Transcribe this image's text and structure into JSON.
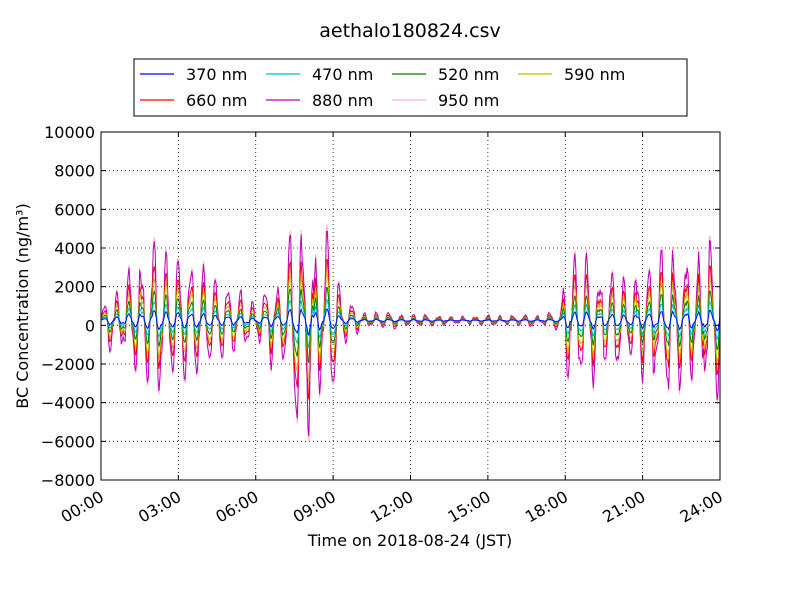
{
  "chart_data": {
    "type": "line",
    "title": "aethalo180824.csv",
    "xlabel": "Time on 2018-08-24 (JST)",
    "ylabel": "BC Concentration (ng/m³)",
    "xlim": [
      "00:00",
      "24:00"
    ],
    "ylim": [
      -8000,
      10000
    ],
    "x_ticks": [
      "00:00",
      "03:00",
      "06:00",
      "09:00",
      "12:00",
      "15:00",
      "18:00",
      "21:00",
      "24:00"
    ],
    "y_ticks": [
      "10000",
      "8000",
      "6000",
      "4000",
      "2000",
      "0",
      "−2000",
      "−4000",
      "−6000",
      "−8000"
    ],
    "grid": true,
    "legend_position": "top",
    "series": [
      {
        "name": "370 nm",
        "color": "#0000ff",
        "amp": 0.12
      },
      {
        "name": "470 nm",
        "color": "#00bfbf",
        "amp": 0.22
      },
      {
        "name": "520 nm",
        "color": "#008000",
        "amp": 0.35
      },
      {
        "name": "590 nm",
        "color": "#bfbf00",
        "amp": 0.5
      },
      {
        "name": "660 nm",
        "color": "#ff0000",
        "amp": 0.65
      },
      {
        "name": "880 nm",
        "color": "#bf00bf",
        "amp": 0.95
      },
      {
        "name": "950 nm",
        "color": "#ffb6c1",
        "amp": 1.0
      }
    ],
    "envelope": {
      "x_hours": [
        0,
        0.3,
        0.7,
        1.2,
        1.7,
        2.0,
        2.4,
        2.9,
        3.4,
        4.0,
        4.6,
        5.2,
        5.8,
        6.3,
        6.8,
        7.2,
        7.5,
        7.8,
        8.0,
        8.2,
        8.4,
        8.6,
        8.9,
        9.2,
        9.5,
        10.0,
        11.0,
        12.0,
        13.0,
        14.0,
        15.0,
        16.0,
        17.0,
        17.8,
        18.05,
        18.3,
        18.8,
        19.3,
        19.8,
        20.3,
        20.8,
        21.3,
        21.8,
        22.3,
        22.8,
        23.3,
        23.7,
        24.0
      ],
      "amplitude": [
        500,
        1500,
        2500,
        3000,
        3500,
        4500,
        4000,
        3500,
        3000,
        2700,
        2000,
        1800,
        1500,
        1500,
        2500,
        4000,
        5500,
        6000,
        7500,
        6500,
        6000,
        5000,
        4500,
        3000,
        1500,
        600,
        500,
        400,
        300,
        300,
        300,
        350,
        350,
        450,
        5500,
        4500,
        3500,
        3300,
        3000,
        2800,
        3000,
        3500,
        4000,
        3800,
        4000,
        4300,
        4600,
        4200
      ]
    }
  }
}
